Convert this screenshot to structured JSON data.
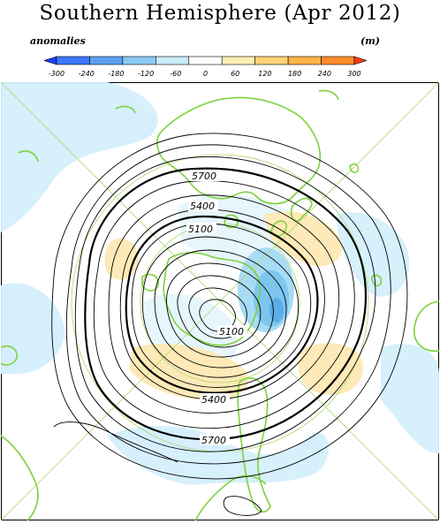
{
  "title": "Southern Hemisphere (Apr 2012)",
  "legend": {
    "left_label": "anomalies",
    "right_label": "(m)",
    "ticks": [
      "-300",
      "-240",
      "-180",
      "-120",
      "-60",
      "0",
      "60",
      "120",
      "180",
      "240",
      "300"
    ],
    "colors": [
      "#1e3cff",
      "#3c78ff",
      "#5aa0f0",
      "#8cc8f5",
      "#c8ebfa",
      "#ffffff",
      "#fff0b4",
      "#ffd278",
      "#ffb446",
      "#ff8c28",
      "#ff3c14"
    ]
  },
  "map": {
    "projection": "south-polar-stereographic",
    "land_color": "#7dd23c",
    "grid_color": "#9ccc50",
    "contour_labels": [
      "5700",
      "5400",
      "5100",
      "5100",
      "5400",
      "5700"
    ]
  }
}
